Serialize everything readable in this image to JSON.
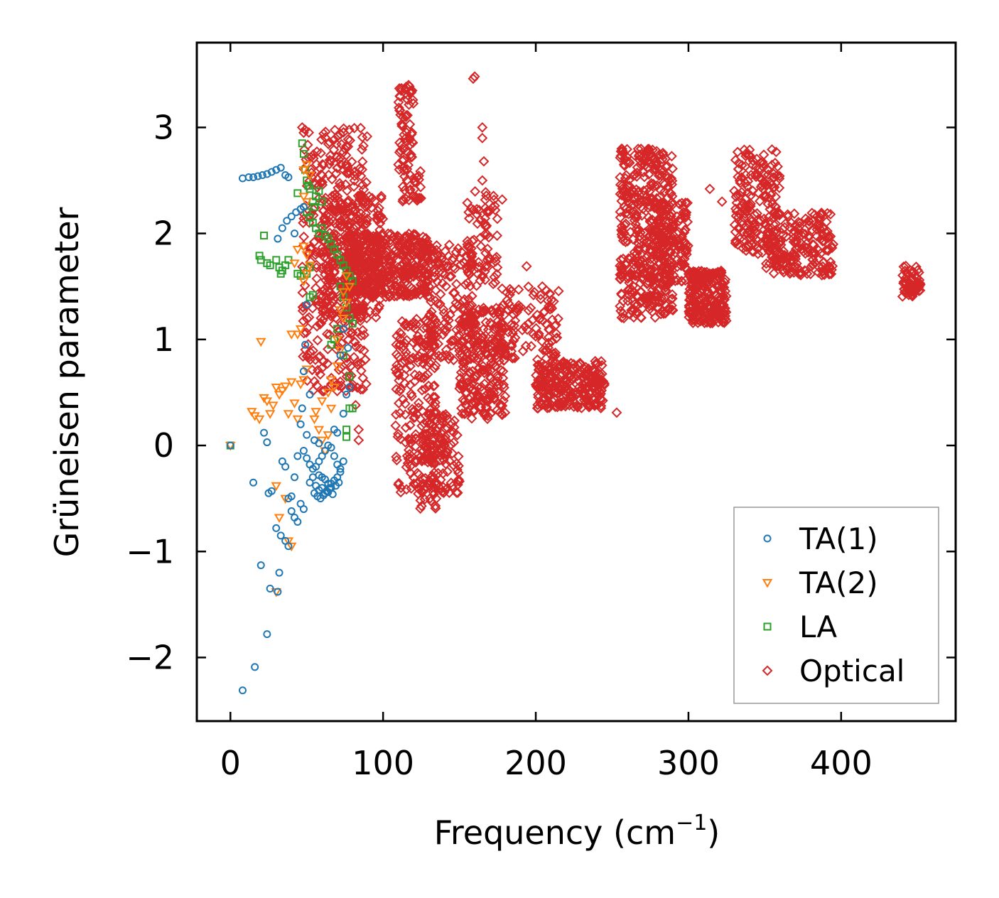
{
  "chart_data": {
    "type": "scatter",
    "title": "",
    "xlabel": "Frequency (cm",
    "xlabel_superscript": "−1",
    "xlabel_suffix": ")",
    "ylabel": "Grüneisen parameter",
    "xlim": [
      -22,
      475
    ],
    "ylim": [
      -2.6,
      3.8
    ],
    "x_ticks": [
      0,
      100,
      200,
      300,
      400
    ],
    "x_tick_labels": [
      "0",
      "100",
      "200",
      "300",
      "400"
    ],
    "y_ticks": [
      -2,
      -1,
      0,
      1,
      2,
      3
    ],
    "y_tick_labels": [
      "−2",
      "−1",
      "0",
      "1",
      "2",
      "3"
    ],
    "grid": false,
    "legend_position": "bottom-right",
    "series": [
      {
        "name": "TA(1)",
        "marker": "circle",
        "color": "#1f77b4",
        "points": [
          [
            0,
            0.0
          ],
          [
            8,
            2.52
          ],
          [
            12,
            2.53
          ],
          [
            15,
            2.53
          ],
          [
            18,
            2.54
          ],
          [
            21,
            2.55
          ],
          [
            24,
            2.56
          ],
          [
            27,
            2.58
          ],
          [
            30,
            2.6
          ],
          [
            33,
            2.62
          ],
          [
            36,
            2.55
          ],
          [
            38,
            2.53
          ],
          [
            31,
            1.95
          ],
          [
            34,
            2.05
          ],
          [
            37,
            2.12
          ],
          [
            40,
            2.16
          ],
          [
            43,
            2.2
          ],
          [
            46,
            2.23
          ],
          [
            48,
            2.25
          ],
          [
            42,
            2.0
          ],
          [
            50,
            1.33
          ],
          [
            49,
            0.95
          ],
          [
            48,
            0.7
          ],
          [
            52,
            0.48
          ],
          [
            47,
            0.35
          ],
          [
            46,
            0.2
          ],
          [
            50,
            0.1
          ],
          [
            55,
            0.05
          ],
          [
            58,
            0.02
          ],
          [
            15,
            -0.35
          ],
          [
            25,
            -0.45
          ],
          [
            27,
            -0.43
          ],
          [
            34,
            -0.15
          ],
          [
            36,
            -0.2
          ],
          [
            38,
            -0.5
          ],
          [
            40,
            -0.48
          ],
          [
            42,
            -0.3
          ],
          [
            44,
            -0.1
          ],
          [
            46,
            -0.55
          ],
          [
            48,
            -0.6
          ],
          [
            22,
            0.12
          ],
          [
            24,
            0.03
          ],
          [
            40,
            -0.62
          ],
          [
            42,
            -0.68
          ],
          [
            44,
            -0.72
          ],
          [
            30,
            -0.78
          ],
          [
            33,
            -0.85
          ],
          [
            36,
            -0.9
          ],
          [
            38,
            -0.95
          ],
          [
            20,
            -1.13
          ],
          [
            32,
            -1.2
          ],
          [
            26,
            -1.35
          ],
          [
            31,
            -1.38
          ],
          [
            24,
            -1.78
          ],
          [
            16,
            -2.09
          ],
          [
            8,
            -2.31
          ],
          [
            52,
            -0.35
          ],
          [
            54,
            -0.3
          ],
          [
            56,
            -0.38
          ],
          [
            58,
            -0.42
          ],
          [
            60,
            -0.4
          ],
          [
            62,
            -0.45
          ],
          [
            64,
            -0.44
          ],
          [
            66,
            -0.36
          ],
          [
            68,
            -0.33
          ],
          [
            70,
            -0.3
          ],
          [
            72,
            -0.25
          ],
          [
            55,
            -0.45
          ],
          [
            57,
            -0.48
          ],
          [
            59,
            -0.5
          ],
          [
            61,
            -0.47
          ],
          [
            63,
            -0.43
          ],
          [
            65,
            -0.4
          ],
          [
            67,
            -0.46
          ],
          [
            69,
            -0.38
          ],
          [
            71,
            -0.35
          ],
          [
            56,
            -0.2
          ],
          [
            58,
            -0.15
          ],
          [
            60,
            -0.1
          ],
          [
            62,
            -0.05
          ],
          [
            64,
            0.0
          ],
          [
            66,
            -0.02
          ],
          [
            68,
            -0.1
          ],
          [
            70,
            -0.18
          ],
          [
            72,
            -0.22
          ],
          [
            74,
            -0.15
          ],
          [
            60,
            -0.3
          ],
          [
            62,
            -0.32
          ],
          [
            64,
            -0.36
          ],
          [
            66,
            -0.4
          ],
          [
            58,
            -0.28
          ],
          [
            54,
            -0.22
          ],
          [
            52,
            -0.18
          ],
          [
            50,
            -0.12
          ],
          [
            48,
            -0.05
          ],
          [
            68,
            0.15
          ],
          [
            70,
            0.12
          ],
          [
            74,
            0.3
          ],
          [
            76,
            0.48
          ],
          [
            78,
            0.55
          ],
          [
            77,
            0.92
          ],
          [
            72,
            0.85
          ],
          [
            74,
            1.1
          ]
        ]
      },
      {
        "name": "TA(2)",
        "marker": "triangle-down",
        "color": "#ff7f0e",
        "points": [
          [
            0,
            0.0
          ],
          [
            14,
            0.32
          ],
          [
            16,
            0.28
          ],
          [
            19,
            0.25
          ],
          [
            20,
            0.98
          ],
          [
            22,
            0.45
          ],
          [
            24,
            0.42
          ],
          [
            26,
            0.3
          ],
          [
            28,
            0.38
          ],
          [
            30,
            0.55
          ],
          [
            32,
            0.48
          ],
          [
            34,
            0.52
          ],
          [
            36,
            0.56
          ],
          [
            38,
            0.3
          ],
          [
            40,
            0.6
          ],
          [
            42,
            0.4
          ],
          [
            44,
            0.25
          ],
          [
            46,
            0.58
          ],
          [
            48,
            0.62
          ],
          [
            50,
            0.72
          ],
          [
            40,
            1.05
          ],
          [
            44,
            1.05
          ],
          [
            46,
            1.1
          ],
          [
            48,
            1.55
          ],
          [
            50,
            1.62
          ],
          [
            52,
            1.7
          ],
          [
            42,
            1.72
          ],
          [
            44,
            1.85
          ],
          [
            48,
            1.88
          ],
          [
            50,
            1.8
          ],
          [
            48,
            2.6
          ],
          [
            50,
            2.65
          ],
          [
            52,
            2.55
          ],
          [
            48,
            2.35
          ],
          [
            50,
            2.3
          ],
          [
            30,
            -0.38
          ],
          [
            32,
            -0.68
          ],
          [
            36,
            -0.5
          ],
          [
            38,
            -0.9
          ],
          [
            40,
            -0.95
          ],
          [
            30,
            -1.38
          ],
          [
            55,
            0.25
          ],
          [
            58,
            0.15
          ],
          [
            60,
            0.05
          ],
          [
            62,
            -0.05
          ],
          [
            64,
            0.1
          ],
          [
            66,
            0.35
          ],
          [
            68,
            0.55
          ],
          [
            70,
            0.75
          ],
          [
            72,
            0.9
          ],
          [
            74,
            1.2
          ],
          [
            76,
            1.35
          ],
          [
            78,
            1.5
          ],
          [
            60,
            0.42
          ],
          [
            64,
            0.5
          ],
          [
            66,
            0.62
          ],
          [
            70,
            1.0
          ],
          [
            72,
            1.28
          ],
          [
            74,
            1.45
          ],
          [
            76,
            1.6
          ],
          [
            56,
            0.32
          ]
        ]
      },
      {
        "name": "LA",
        "marker": "square",
        "color": "#2ca02c",
        "points": [
          [
            0,
            0.0
          ],
          [
            19,
            1.79
          ],
          [
            20,
            1.75
          ],
          [
            22,
            1.98
          ],
          [
            24,
            1.72
          ],
          [
            26,
            1.7
          ],
          [
            30,
            1.75
          ],
          [
            32,
            1.68
          ],
          [
            33,
            1.62
          ],
          [
            34,
            1.65
          ],
          [
            36,
            1.7
          ],
          [
            38,
            1.75
          ],
          [
            44,
            1.62
          ],
          [
            46,
            1.6
          ],
          [
            48,
            1.65
          ],
          [
            50,
            1.62
          ],
          [
            52,
            1.68
          ],
          [
            44,
            2.38
          ],
          [
            47,
            2.85
          ],
          [
            48,
            2.75
          ],
          [
            49,
            2.6
          ],
          [
            50,
            2.5
          ],
          [
            51,
            2.45
          ],
          [
            52,
            2.42
          ],
          [
            54,
            2.3
          ],
          [
            55,
            2.25
          ],
          [
            56,
            2.35
          ],
          [
            58,
            2.4
          ],
          [
            60,
            2.3
          ],
          [
            50,
            2.2
          ],
          [
            52,
            2.15
          ],
          [
            54,
            2.1
          ],
          [
            56,
            2.05
          ],
          [
            58,
            2.0
          ],
          [
            60,
            2.05
          ],
          [
            62,
            1.98
          ],
          [
            64,
            1.95
          ],
          [
            66,
            1.9
          ],
          [
            68,
            1.85
          ],
          [
            70,
            1.8
          ],
          [
            72,
            1.75
          ],
          [
            74,
            1.7
          ],
          [
            76,
            1.65
          ],
          [
            78,
            1.6
          ],
          [
            80,
            1.55
          ],
          [
            72,
            1.5
          ],
          [
            74,
            1.4
          ],
          [
            76,
            1.3
          ],
          [
            78,
            1.2
          ],
          [
            80,
            1.15
          ],
          [
            70,
            1.1
          ],
          [
            68,
            1.0
          ],
          [
            66,
            0.95
          ],
          [
            74,
            0.85
          ],
          [
            78,
            0.65
          ],
          [
            78,
            0.35
          ],
          [
            76,
            0.15
          ],
          [
            80,
            0.35
          ],
          [
            76,
            0.08
          ],
          [
            54,
            1.42
          ],
          [
            52,
            1.4
          ]
        ]
      },
      {
        "name": "Optical",
        "marker": "diamond",
        "color": "#d62728",
        "points": [],
        "clusters": [
          {
            "x": [
              47,
              90
            ],
            "y": [
              0.5,
              3.0
            ],
            "n": 380
          },
          {
            "x": [
              60,
              100
            ],
            "y": [
              1.2,
              2.4
            ],
            "n": 260
          },
          {
            "x": [
              75,
              130
            ],
            "y": [
              1.4,
              2.0
            ],
            "n": 420
          },
          {
            "x": [
              110,
              120
            ],
            "y": [
              2.6,
              3.4
            ],
            "n": 60
          },
          {
            "x": [
              112,
              125
            ],
            "y": [
              2.3,
              2.6
            ],
            "n": 30
          },
          {
            "x": [
              108,
              135
            ],
            "y": [
              -0.6,
              1.2
            ],
            "n": 220
          },
          {
            "x": [
              125,
              150
            ],
            "y": [
              -0.45,
              0.3
            ],
            "n": 120
          },
          {
            "x": [
              125,
              160
            ],
            "y": [
              0.8,
              1.9
            ],
            "n": 160
          },
          {
            "x": [
              150,
              180
            ],
            "y": [
              0.25,
              1.3
            ],
            "n": 260
          },
          {
            "x": [
              155,
              175
            ],
            "y": [
              1.5,
              2.4
            ],
            "n": 80
          },
          {
            "x": [
              175,
              215
            ],
            "y": [
              0.8,
              1.5
            ],
            "n": 110
          },
          {
            "x": [
              200,
              245
            ],
            "y": [
              0.35,
              0.8
            ],
            "n": 260
          },
          {
            "x": [
              255,
              290
            ],
            "y": [
              1.2,
              2.8
            ],
            "n": 420
          },
          {
            "x": [
              275,
              300
            ],
            "y": [
              1.5,
              2.3
            ],
            "n": 140
          },
          {
            "x": [
              300,
              325
            ],
            "y": [
              1.15,
              1.65
            ],
            "n": 240
          },
          {
            "x": [
              330,
              360
            ],
            "y": [
              1.8,
              2.8
            ],
            "n": 180
          },
          {
            "x": [
              350,
              395
            ],
            "y": [
              1.6,
              2.2
            ],
            "n": 200
          },
          {
            "x": [
              440,
              452
            ],
            "y": [
              1.4,
              1.7
            ],
            "n": 60
          }
        ],
        "outliers": [
          [
            160,
            3.48
          ],
          [
            159,
            3.46
          ],
          [
            165,
            3.0
          ],
          [
            165,
            2.9
          ],
          [
            166,
            2.68
          ],
          [
            165,
            2.5
          ],
          [
            178,
            2.32
          ],
          [
            194,
            1.69
          ],
          [
            213,
            0.85
          ],
          [
            253,
            0.31
          ],
          [
            314,
            2.42
          ],
          [
            322,
            2.3
          ],
          [
            237,
            0.5
          ],
          [
            47,
            3.0
          ],
          [
            48,
            2.95
          ],
          [
            84,
            0.05
          ],
          [
            84,
            0.15
          ],
          [
            82,
            0.38
          ],
          [
            80,
            0.55
          ]
        ]
      }
    ]
  }
}
